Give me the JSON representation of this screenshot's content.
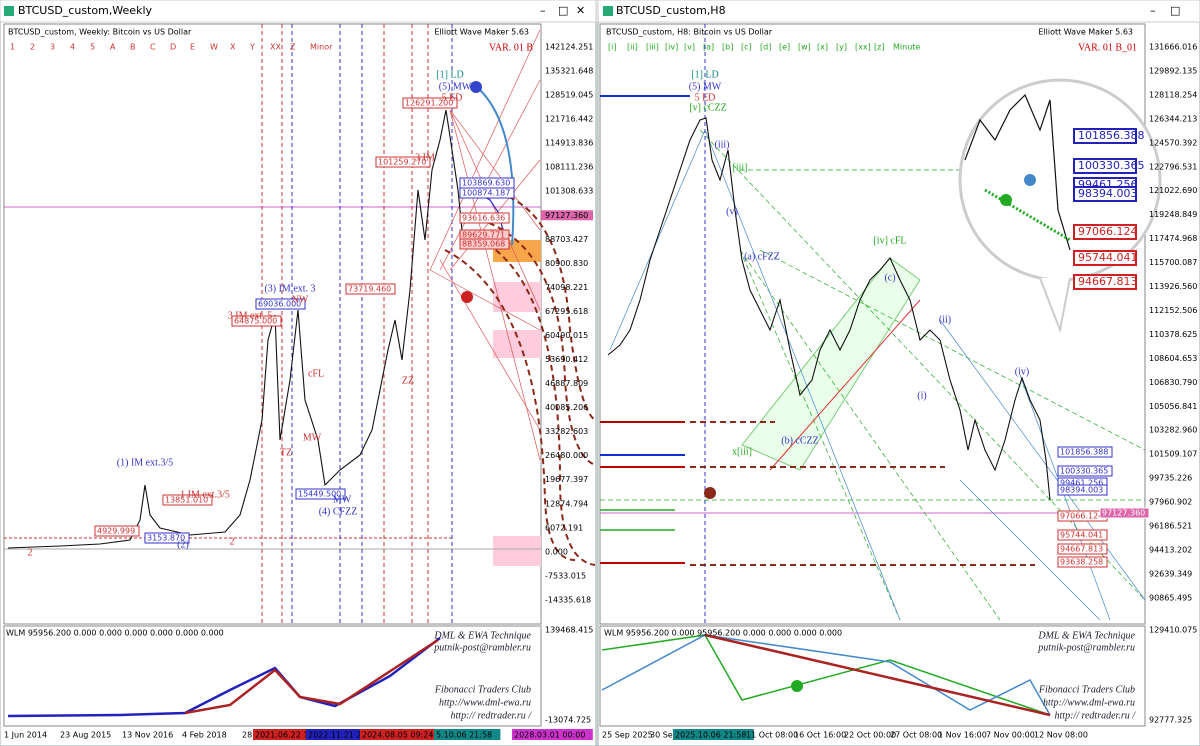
{
  "left_window": {
    "title": "BTCUSD_custom,Weekly",
    "chart_header": "BTCUSD_custom, Weekly:  Bitcoin vs US Dollar",
    "wave_degrees": [
      "1",
      "2",
      "3",
      "4",
      "5",
      "A",
      "B",
      "C",
      "D",
      "E",
      "W",
      "X",
      "Y",
      "XX",
      "Z",
      "Minor"
    ],
    "indicator": "Elliott Wave Maker 5.63",
    "variant": "VAR. 01 B",
    "price_labels": [
      "142124.251",
      "135321.648",
      "128519.045",
      "121716.442",
      "114913.836",
      "108111.236",
      "101308.633",
      "97127.360",
      "88703.427",
      "80900.830",
      "74098.221",
      "67295.618",
      "60490.015",
      "53690.412",
      "46887.809",
      "40085.206",
      "33282.603",
      "26480.000",
      "19677.397",
      "12874.794",
      "6072.191",
      "0.000",
      "-7533.015",
      "-14335.618"
    ],
    "price_boxes": [
      "126291.200",
      "103869.630",
      "100874.187",
      "93616.636",
      "89629.771",
      "88359.068",
      "101259.270",
      "73719.460",
      "69036.000",
      "64875.000",
      "15449.500",
      "13851.010",
      "4929.999",
      "3153.870"
    ],
    "wave_labels": [
      "[1] LD",
      "(5) MW",
      "5 ED",
      "3 IM",
      "(3) IM ext. 3",
      "NW",
      "3 IM ext. 5",
      "cFL",
      "ZZ",
      "MW",
      "TZ",
      "(1) IM ext.3/5",
      "1 IM ext.3/5",
      "MW",
      "(4) CFZZ",
      "(2)",
      "2",
      "2"
    ],
    "date_labels": [
      "1 Jun 2014",
      "23 Aug 2015",
      "13 Nov 2016",
      "4 Feb 2018",
      "28 Apr 2019",
      "2021.06.22 16:55",
      "2022.11.21 23:59",
      "2024.08.05 09:24",
      "5.10.06 21:58",
      "2028.03.01 00:00"
    ],
    "subwindow": {
      "header": "WLM 95956.200 0.000 0.000 0.000 0.000 0.000 0.000",
      "axis": [
        "139468.415",
        "-13074.725"
      ],
      "watermark": [
        "DML & EWA Technique",
        "putnik-post@rambler.ru",
        "Fibonacci   Traders   Club",
        "http://www.dml-ewa.ru",
        "http:// redtrader.ru /"
      ]
    }
  },
  "right_window": {
    "title": "BTCUSD_custom,H8",
    "chart_header": "BTCUSD_custom, H8:  Bitcoin vs US Dollar",
    "wave_degrees": [
      "[i]",
      "[ii]",
      "[iii]",
      "[iv]",
      "[v]",
      "[a]",
      "[b]",
      "[c]",
      "[d]",
      "[e]",
      "[w]",
      "[x]",
      "[y]",
      "[xx]",
      "[z]",
      "Minute"
    ],
    "indicator": "Elliott Wave Maker 5.63",
    "variant": "VAR. 01 B_01",
    "price_labels": [
      "131666.016",
      "129892.135",
      "128118.254",
      "126344.213",
      "124570.392",
      "122796.531",
      "121022.690",
      "119248.849",
      "117474.968",
      "115700.087",
      "113926.560",
      "112152.506",
      "110378.625",
      "108604.653",
      "106830.790",
      "105056.841",
      "103282.960",
      "101509.107",
      "99735.226",
      "97960.902",
      "96186.521",
      "94413.202",
      "92639.349",
      "90865.495"
    ],
    "price_boxes": [
      "101856.388",
      "100330.365",
      "99461.256",
      "98394.003",
      "97066.124",
      "95744.041",
      "94667.813",
      "93638.258",
      "97127.360"
    ],
    "zoom_boxes": [
      "101856.388",
      "100330.365",
      "99461.256",
      "98394.003",
      "97066.124",
      "95744.041",
      "94667.813"
    ],
    "wave_labels": [
      "[1] LD",
      "(5) MW",
      "5 ED",
      "[v] cCZZ",
      "[iii]",
      "(iii)",
      "[iv] cFL",
      "(a) cFZZ",
      "(b) cCZZ",
      "x[iii]",
      "(iv)",
      "(ii)",
      "(i)",
      "(c)",
      "(v)"
    ],
    "date_labels": [
      "25 Sep 2025",
      "30 Sep 16:00",
      "2025.10.06 21:58",
      "11 Oct 08:00",
      "16 Oct 16:00",
      "22 Oct 00:00",
      "27 Oct 08:00",
      "1 Nov 16:00",
      "7 Nov 00:00",
      "12 Nov 08:00"
    ],
    "subwindow": {
      "header": "WLM 95956.200 0.000 95956.200 0.000 0.000 0.000 0.000",
      "axis": [
        "129410.075",
        "92777.325"
      ],
      "watermark": [
        "DML & EWA Technique",
        "putnik-post@rambler.ru",
        "Fibonacci   Traders   Club",
        "http://www.dml-ewa.ru",
        "http:// redtrader.ru /"
      ]
    }
  }
}
